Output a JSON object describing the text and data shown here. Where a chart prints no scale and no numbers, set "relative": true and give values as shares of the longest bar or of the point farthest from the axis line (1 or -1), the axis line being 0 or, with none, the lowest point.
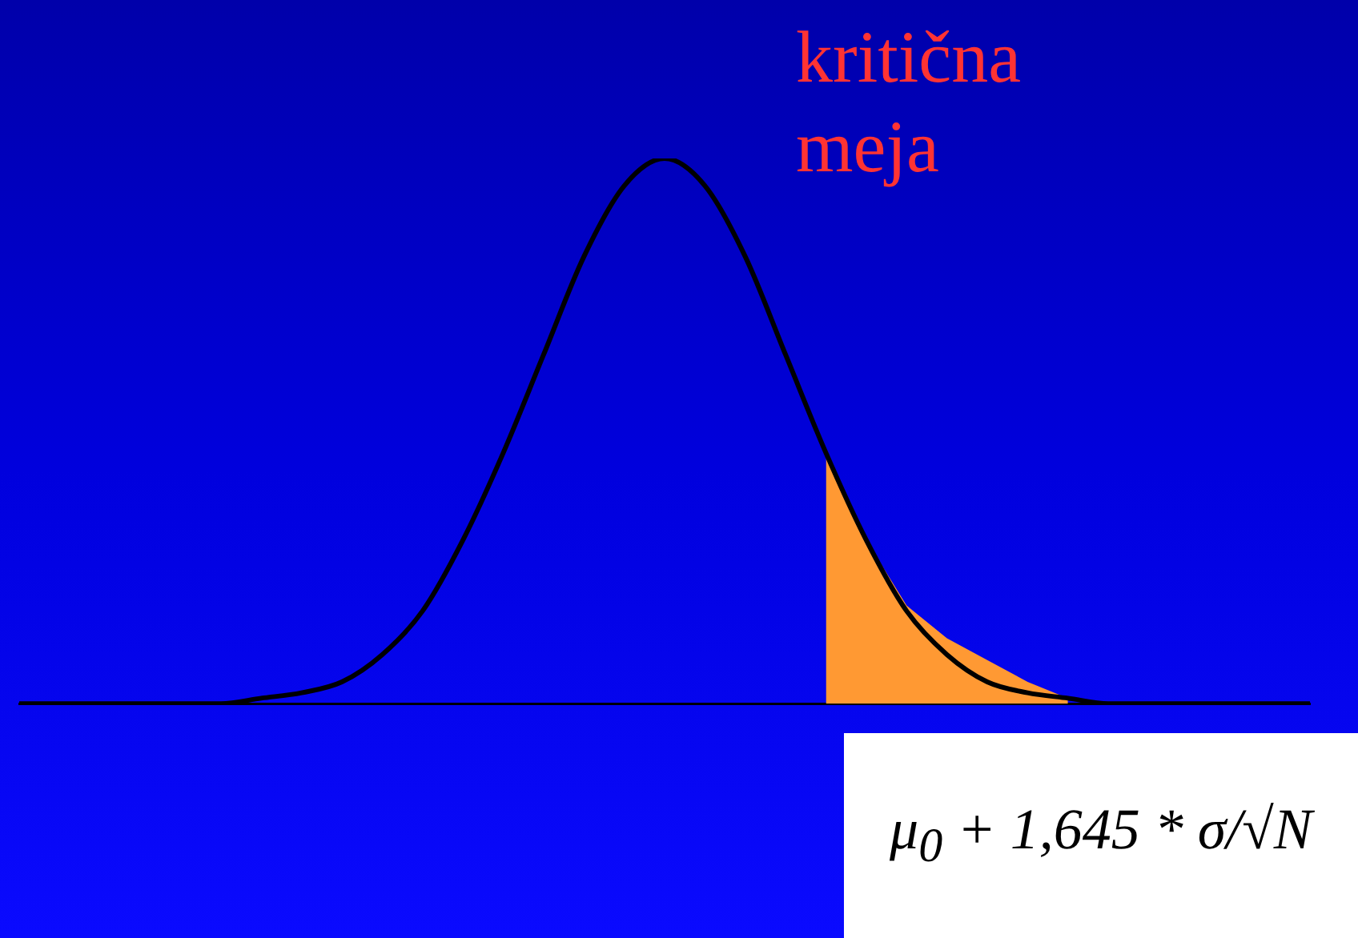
{
  "chart_data": {
    "type": "line",
    "relative": true,
    "categories": [
      null,
      null,
      null,
      null,
      null,
      null,
      null,
      null,
      null,
      null,
      null,
      null,
      null,
      null,
      null,
      null,
      null,
      null,
      null,
      null,
      null,
      null,
      null,
      null,
      null,
      null,
      null,
      null,
      null,
      null,
      null,
      null,
      null
    ],
    "series": [
      {
        "type": "line",
        "color": "#000000",
        "values": [
          0,
          0,
          0,
          0,
          0,
          0,
          0.01,
          0.02,
          0.04,
          0.09,
          0.17,
          0.3,
          0.46,
          0.64,
          0.82,
          0.95,
          1,
          0.95,
          0.82,
          0.64,
          0.46,
          0.3,
          0.17,
          0.09,
          0.04,
          0.02,
          0.01,
          0,
          0,
          0,
          0,
          0,
          0
        ]
      },
      {
        "type": "area",
        "color": "#ff9933",
        "values": [
          null,
          null,
          null,
          null,
          null,
          null,
          null,
          null,
          null,
          null,
          null,
          null,
          null,
          null,
          null,
          null,
          null,
          null,
          null,
          null,
          0.46,
          0.3,
          0.18,
          0.12,
          0.08,
          0.04,
          0.01,
          null,
          null,
          null,
          null,
          null,
          null
        ]
      }
    ],
    "annotations": [
      "kritična meja",
      "μ$_{0}$ + 1,645 * σ/√N"
    ],
    "grid": false,
    "legend": false,
    "marker": "none"
  }
}
